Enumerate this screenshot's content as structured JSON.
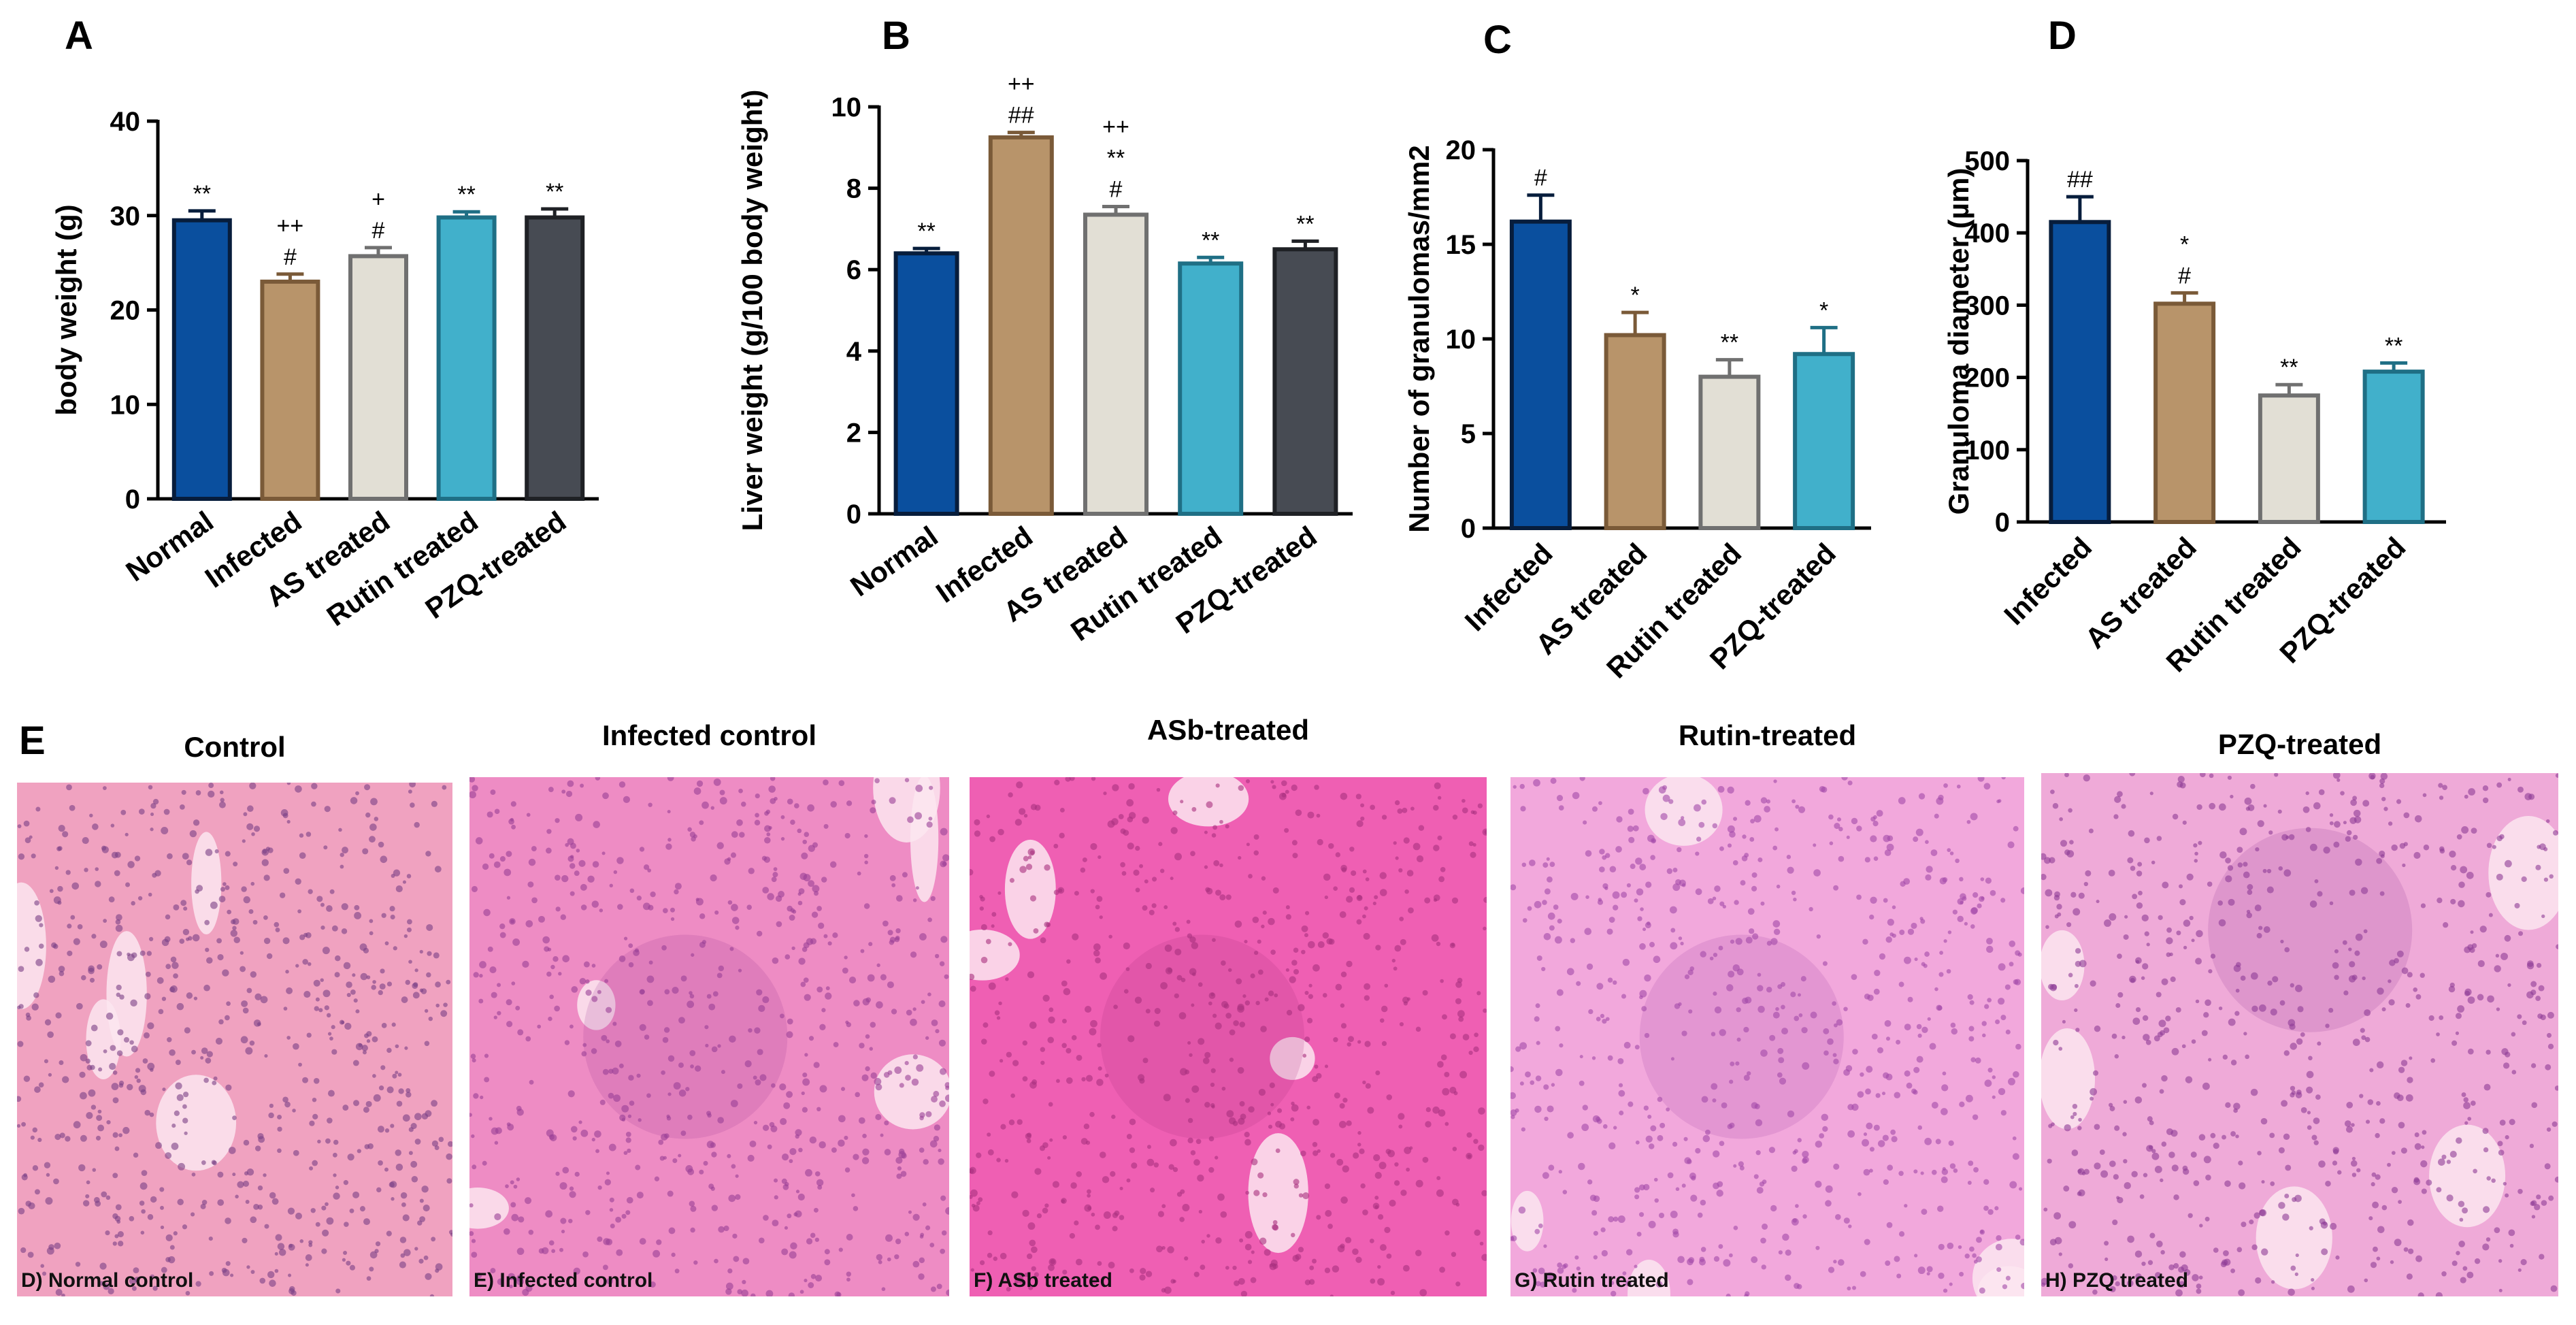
{
  "chart_data": [
    {
      "panel": "A",
      "type": "bar",
      "ylabel": "body weight (g)",
      "ylim": [
        0,
        40
      ],
      "yticks": [
        0,
        10,
        20,
        30,
        40
      ],
      "categories": [
        "Normal",
        "Infected",
        "AS treated",
        "Rutin treated",
        "PZQ-treated"
      ],
      "values": [
        29.5,
        23,
        25.7,
        29.8,
        29.8
      ],
      "errors": [
        1.0,
        0.8,
        0.9,
        0.6,
        0.9
      ],
      "colors": [
        "#0a4f9e",
        "#b8946a",
        "#e2dfd5",
        "#41b0cb",
        "#474b53"
      ],
      "edges": [
        "#071d3c",
        "#7a5a38",
        "#707070",
        "#1f6f85",
        "#1f2125"
      ],
      "annotations": [
        [
          "**"
        ],
        [
          "++",
          "#"
        ],
        [
          "+",
          "#"
        ],
        [
          "**"
        ],
        [
          "**"
        ]
      ]
    },
    {
      "panel": "B",
      "type": "bar",
      "ylabel": "Liver weight (g/100 body weight)",
      "ylim": [
        0,
        10
      ],
      "yticks": [
        0,
        2,
        4,
        6,
        8,
        10
      ],
      "categories": [
        "Normal",
        "Infected",
        "AS treated",
        "Rutin treated",
        "PZQ-treated"
      ],
      "values": [
        6.4,
        9.25,
        7.35,
        6.15,
        6.5
      ],
      "errors": [
        0.12,
        0.12,
        0.2,
        0.15,
        0.2
      ],
      "colors": [
        "#0a4f9e",
        "#b8946a",
        "#e2dfd5",
        "#41b0cb",
        "#474b53"
      ],
      "edges": [
        "#071d3c",
        "#7a5a38",
        "#707070",
        "#1f6f85",
        "#1f2125"
      ],
      "annotations": [
        [
          "**"
        ],
        [
          "++",
          "##"
        ],
        [
          "++",
          "**",
          "#"
        ],
        [
          "**"
        ],
        [
          "**"
        ]
      ]
    },
    {
      "panel": "C",
      "type": "bar",
      "ylabel": "Number of granulomas/mm2",
      "ylim": [
        0,
        20
      ],
      "yticks": [
        0,
        5,
        10,
        15,
        20
      ],
      "categories": [
        "Infected",
        "AS treated",
        "Rutin treated",
        "PZQ-treated"
      ],
      "values": [
        16.2,
        10.2,
        8.0,
        9.2
      ],
      "errors": [
        1.4,
        1.2,
        0.9,
        1.4
      ],
      "colors": [
        "#0a4f9e",
        "#b8946a",
        "#e2dfd5",
        "#41b0cb"
      ],
      "edges": [
        "#071d3c",
        "#7a5a38",
        "#707070",
        "#1f6f85"
      ],
      "annotations": [
        [
          "#"
        ],
        [
          "*"
        ],
        [
          "**"
        ],
        [
          "*"
        ]
      ]
    },
    {
      "panel": "D",
      "type": "bar",
      "ylabel": "Granuloma diameter (µm)",
      "ylim": [
        0,
        500
      ],
      "yticks": [
        0,
        100,
        200,
        300,
        400,
        500
      ],
      "categories": [
        "Infected",
        "AS treated",
        "Rutin treated",
        "PZQ-treated"
      ],
      "values": [
        415,
        302,
        175,
        208
      ],
      "errors": [
        35,
        15,
        15,
        12
      ],
      "colors": [
        "#0a4f9e",
        "#b8946a",
        "#e2dfd5",
        "#41b0cb"
      ],
      "edges": [
        "#071d3c",
        "#7a5a38",
        "#707070",
        "#1f6f85"
      ],
      "annotations": [
        [
          "##"
        ],
        [
          "*",
          "#"
        ],
        [
          "**"
        ],
        [
          "**"
        ]
      ]
    }
  ],
  "histology": {
    "panel": "E",
    "items": [
      {
        "title": "Control",
        "caption": "D) Normal control",
        "base": "#f0a2c0",
        "cell": "#7a3f86"
      },
      {
        "title": "Infected control",
        "caption": "E) Infected control",
        "base": "#ee8cc4",
        "cell": "#9a3f96"
      },
      {
        "title": "ASb-treated",
        "caption": "F) ASb treated",
        "base": "#ef5fb3",
        "cell": "#a8317f"
      },
      {
        "title": "Rutin-treated",
        "caption": "G) Rutin treated",
        "base": "#f2a8dc",
        "cell": "#a24aa8"
      },
      {
        "title": "PZQ-treated",
        "caption": "H) PZQ treated",
        "base": "#efaad8",
        "cell": "#8e3c96"
      }
    ]
  }
}
